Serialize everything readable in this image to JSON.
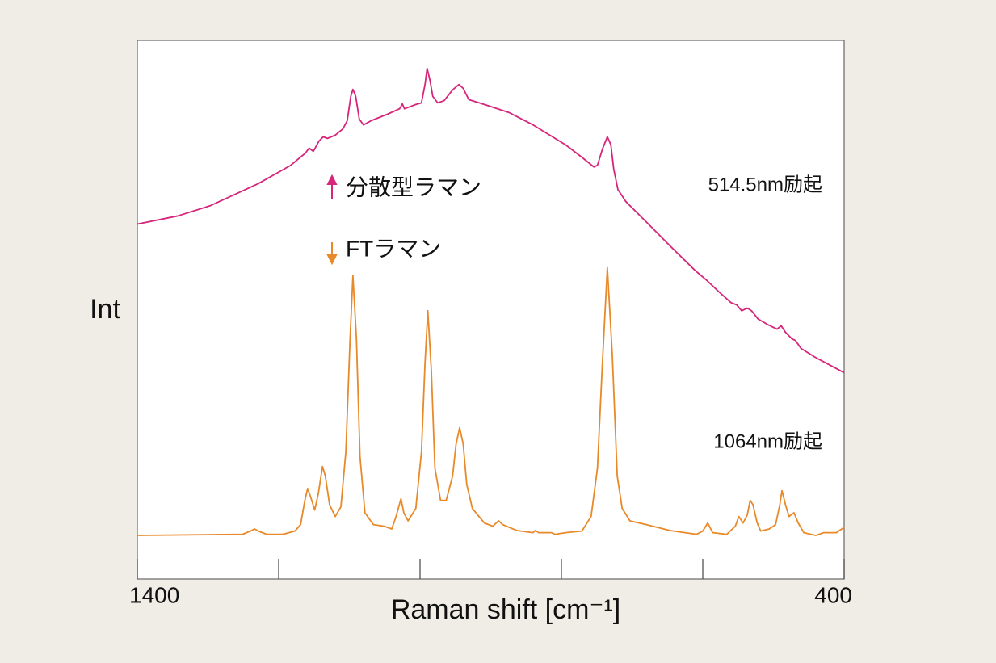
{
  "chart_data": {
    "type": "line",
    "ylabel": "Int",
    "xlabel": "Raman  shift  [cm⁻¹]",
    "xlim": [
      1400,
      400
    ],
    "ylim": [
      0,
      100
    ],
    "xticks": [
      1400,
      {
        "value": 1200,
        "label": null
      },
      {
        "value": 1000,
        "label": null
      },
      {
        "value": 800,
        "label": null
      },
      {
        "value": 600,
        "label": null
      },
      400
    ],
    "legend": "upper-center",
    "annotations": [
      "514.5nm励起",
      "1064nm励起"
    ],
    "series": [
      {
        "name": "分散型ラマン",
        "color": "#d6257a",
        "x": [
          1400,
          1343,
          1297,
          1229,
          1183,
          1162,
          1157,
          1151,
          1143,
          1137,
          1131,
          1120,
          1109,
          1103,
          1098,
          1095,
          1091,
          1086,
          1080,
          1069,
          1046,
          1029,
          1025,
          1022,
          1006,
          998,
          993,
          990,
          986,
          982,
          975,
          966,
          954,
          945,
          939,
          931,
          909,
          874,
          840,
          794,
          771,
          754,
          749,
          742,
          735,
          730,
          726,
          720,
          709,
          680,
          646,
          611,
          594,
          577,
          560,
          552,
          545,
          537,
          531,
          522,
          509,
          495,
          489,
          483,
          474,
          469,
          461,
          440,
          400
        ],
        "values": [
          65.9,
          67.4,
          69.3,
          73.4,
          76.8,
          79.1,
          80.0,
          79.4,
          81.3,
          82.1,
          81.8,
          82.4,
          83.6,
          85.1,
          89.6,
          90.9,
          89.6,
          85.4,
          84.3,
          85.1,
          86.3,
          87.3,
          88.2,
          87.3,
          88.1,
          88.4,
          91.8,
          94.8,
          92.6,
          89.6,
          88.4,
          88.8,
          90.8,
          91.8,
          91.1,
          89.0,
          88.1,
          86.6,
          84.3,
          80.6,
          78.3,
          76.5,
          76.8,
          79.8,
          82.1,
          80.6,
          76.1,
          72.3,
          70.1,
          66.3,
          61.8,
          57.3,
          55.4,
          53.3,
          51.3,
          50.9,
          49.8,
          50.3,
          49.8,
          48.3,
          47.3,
          46.4,
          47.0,
          45.8,
          44.6,
          44.3,
          42.8,
          41.1,
          38.3
        ]
      },
      {
        "name": "FTラマン",
        "color": "#e8892a",
        "x": [
          1400,
          1251,
          1240,
          1234,
          1229,
          1217,
          1194,
          1177,
          1169,
          1163,
          1159,
          1154,
          1149,
          1144,
          1138,
          1134,
          1128,
          1120,
          1112,
          1105,
          1099,
          1095,
          1090,
          1085,
          1078,
          1066,
          1051,
          1040,
          1034,
          1027,
          1023,
          1017,
          1006,
          998,
          993,
          989,
          984,
          979,
          971,
          963,
          954,
          949,
          944,
          939,
          934,
          926,
          909,
          897,
          889,
          883,
          863,
          840,
          837,
          832,
          814,
          809,
          794,
          771,
          758,
          749,
          742,
          735,
          728,
          721,
          714,
          703,
          680,
          646,
          609,
          600,
          593,
          586,
          566,
          554,
          549,
          543,
          537,
          533,
          529,
          523,
          518,
          506,
          497,
          491,
          488,
          483,
          478,
          471,
          465,
          457,
          440,
          429,
          411,
          400
        ],
        "values": [
          8.1,
          8.3,
          8.9,
          9.3,
          8.9,
          8.3,
          8.3,
          8.9,
          10.1,
          14.6,
          16.8,
          14.9,
          12.8,
          15.8,
          20.9,
          19.1,
          13.8,
          11.6,
          13.4,
          23.6,
          44.6,
          56.3,
          44.6,
          22.8,
          12.3,
          10.1,
          9.8,
          9.3,
          11.6,
          14.9,
          12.3,
          10.8,
          13.1,
          23.6,
          40.1,
          49.8,
          38.6,
          20.6,
          14.6,
          14.6,
          19.1,
          25.1,
          28.1,
          25.1,
          17.6,
          13.1,
          10.4,
          9.8,
          10.8,
          10.1,
          9.0,
          8.6,
          9.0,
          8.6,
          8.6,
          8.3,
          8.6,
          8.9,
          11.6,
          20.6,
          40.1,
          57.8,
          41.6,
          19.1,
          13.1,
          10.8,
          10.1,
          9.0,
          8.3,
          8.9,
          10.4,
          8.6,
          8.3,
          9.8,
          11.6,
          10.4,
          11.9,
          14.6,
          13.8,
          10.4,
          8.9,
          9.3,
          10.1,
          13.8,
          16.4,
          13.8,
          11.6,
          12.3,
          10.4,
          8.6,
          8.1,
          8.6,
          8.6,
          9.6
        ]
      }
    ]
  }
}
